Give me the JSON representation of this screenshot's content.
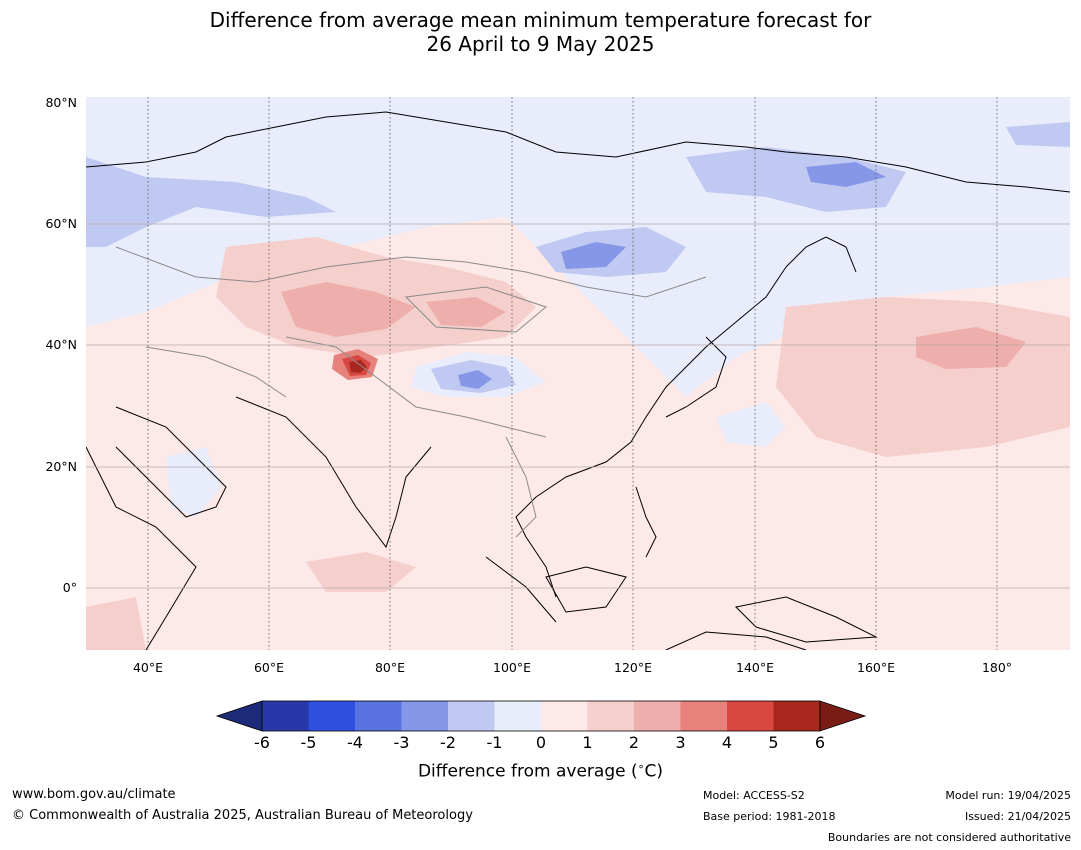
{
  "title": {
    "line1": "Difference from average mean minimum temperature forecast for",
    "line2": "26 April to 9 May 2025"
  },
  "map": {
    "lat_labels": [
      "80°N",
      "60°N",
      "40°N",
      "20°N",
      "0°"
    ],
    "lon_labels": [
      "40°E",
      "60°E",
      "80°E",
      "100°E",
      "120°E",
      "140°E",
      "160°E",
      "180°"
    ],
    "anomalies": [
      {
        "region": "Central Asia / Tibetan Plateau west",
        "value_c": 6
      },
      {
        "region": "Kazakhstan / Mongolia belt",
        "value_c": 2
      },
      {
        "region": "North Pacific east of Japan",
        "value_c": 2
      },
      {
        "region": "Central Tibetan Plateau",
        "value_c": -3
      },
      {
        "region": "Lake Baikal region",
        "value_c": -3
      },
      {
        "region": "East Siberia",
        "value_c": -3
      }
    ]
  },
  "colorbar": {
    "ticks": [
      "-6",
      "-5",
      "-4",
      "-3",
      "-2",
      "-1",
      "0",
      "1",
      "2",
      "3",
      "4",
      "5",
      "6"
    ],
    "colors": [
      "#1c2a78",
      "#2838aa",
      "#2f4fdf",
      "#5a72e2",
      "#8797e8",
      "#c0c9f1",
      "#e8ecfb",
      "#fde9e8",
      "#f5cfcb",
      "#eeaeab",
      "#e6817c",
      "#d84840",
      "#a8281f",
      "#7a1c16"
    ],
    "label": "Difference from average (",
    "unit": "C)"
  },
  "footer": {
    "website": "www.bom.gov.au/climate",
    "copyright": "© Commonwealth of Australia 2025, Australian Bureau of Meteorology",
    "model": "Model: ACCESS-S2",
    "base_period": "Base period: 1981-2018",
    "model_run": "Model run: 19/04/2025",
    "issued": "Issued: 21/04/2025",
    "disclaimer": "Boundaries are not considered authoritative"
  }
}
